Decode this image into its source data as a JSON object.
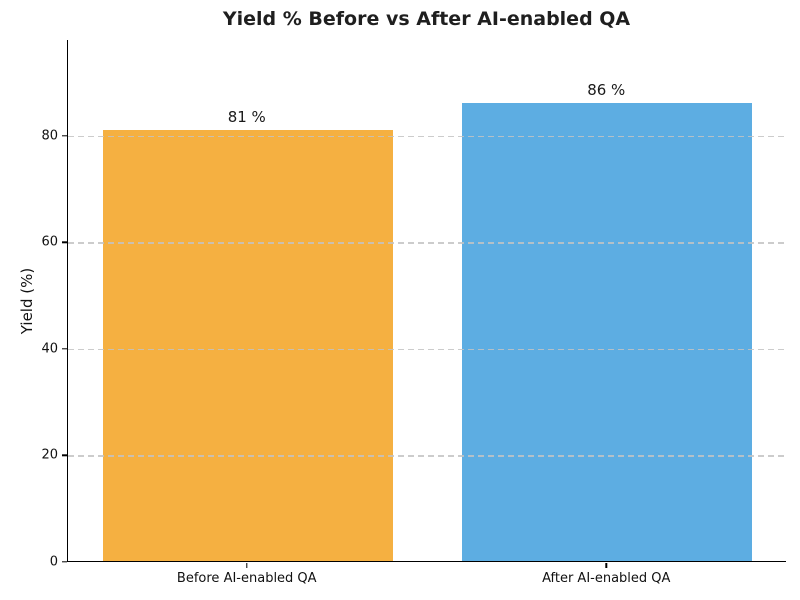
{
  "chart_data": {
    "type": "bar",
    "title": "Yield % Before vs After AI-enabled QA",
    "xlabel": "",
    "ylabel": "Yield (%)",
    "categories": [
      "Before AI-enabled QA",
      "After AI-enabled QA"
    ],
    "values": [
      81,
      86
    ],
    "bar_labels": [
      "81 %",
      "86 %"
    ],
    "bar_colors": [
      "#F5B041",
      "#5DADE2"
    ],
    "ylim": [
      0,
      98
    ],
    "yticks": [
      0,
      20,
      40,
      60,
      80
    ],
    "grid": "horizontal dashed, drawn over bars",
    "legend": "none",
    "colors": {
      "title": "#1f1f1f",
      "axis": "#000000",
      "tick_label": "#111111",
      "gridline": "#c3c3c3",
      "background": "#ffffff"
    }
  }
}
